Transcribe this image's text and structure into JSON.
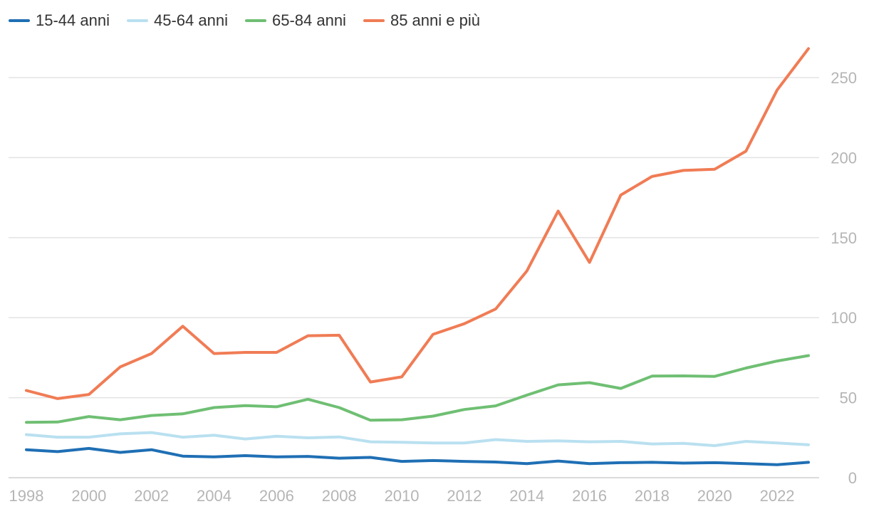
{
  "chart_data": {
    "type": "line",
    "x": [
      1998,
      1999,
      2000,
      2001,
      2002,
      2003,
      2004,
      2005,
      2006,
      2007,
      2008,
      2009,
      2010,
      2011,
      2012,
      2013,
      2014,
      2015,
      2016,
      2017,
      2018,
      2019,
      2020,
      2021,
      2022,
      2023
    ],
    "x_ticks": [
      1998,
      2000,
      2002,
      2004,
      2006,
      2008,
      2010,
      2012,
      2014,
      2016,
      2018,
      2020,
      2022
    ],
    "y_ticks": [
      0,
      50,
      100,
      150,
      200,
      250
    ],
    "ylim": [
      0,
      270
    ],
    "grid": true,
    "legend_position": "top-left",
    "series": [
      {
        "name": "15-44 anni",
        "color": "#1f6fb4",
        "values": [
          17.5,
          16.3,
          18.3,
          15.8,
          17.5,
          13.5,
          13.0,
          13.8,
          13.0,
          13.3,
          12.2,
          12.7,
          10.2,
          10.7,
          10.2,
          9.8,
          8.8,
          10.4,
          8.8,
          9.4,
          9.6,
          9.1,
          9.4,
          8.8,
          8.1,
          9.6
        ]
      },
      {
        "name": "45-64 anni",
        "color": "#b9e0f0",
        "values": [
          26.9,
          25.3,
          25.3,
          27.4,
          28.2,
          25.3,
          26.5,
          24.2,
          25.9,
          24.9,
          25.5,
          22.4,
          22.1,
          21.7,
          21.7,
          23.8,
          22.7,
          23.0,
          22.4,
          22.7,
          21.1,
          21.5,
          20.0,
          22.7,
          21.7,
          20.6
        ]
      },
      {
        "name": "65-84 anni",
        "color": "#6fbf73",
        "values": [
          34.6,
          34.8,
          38.2,
          36.2,
          38.9,
          39.9,
          43.8,
          45.0,
          44.3,
          49.0,
          43.8,
          35.9,
          36.2,
          38.5,
          42.6,
          44.9,
          51.6,
          58.0,
          59.4,
          55.8,
          63.5,
          63.6,
          63.3,
          68.5,
          72.9,
          76.3
        ]
      },
      {
        "name": "85 anni e più",
        "color": "#f07c55",
        "values": [
          54.5,
          49.4,
          52.0,
          69.2,
          77.6,
          94.6,
          77.6,
          78.3,
          78.3,
          88.7,
          89.0,
          59.8,
          63.0,
          89.6,
          96.2,
          105.4,
          129.2,
          166.6,
          134.5,
          176.6,
          188.2,
          192.0,
          192.7,
          204.0,
          242.3,
          268.1
        ]
      }
    ]
  }
}
